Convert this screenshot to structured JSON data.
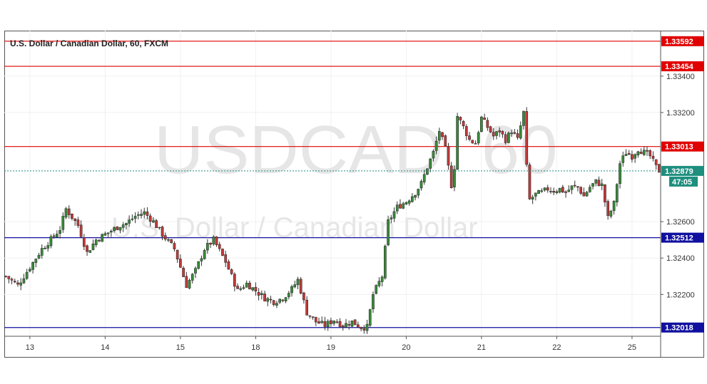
{
  "chart_data": {
    "type": "candlestick",
    "title": "U.S. Dollar / Canadian Dollar, 60, FXCM",
    "watermark_symbol": "USDCAD, 60",
    "watermark_name": "U.S. Dollar / Canadian Dollar",
    "ylim": [
      1.3197,
      1.3365
    ],
    "y_ticks": [
      "1.32200",
      "1.32400",
      "1.32600",
      "1.33200",
      "1.33400"
    ],
    "y_tick_values": [
      1.322,
      1.324,
      1.326,
      1.332,
      1.334
    ],
    "x_ticks": [
      "13",
      "14",
      "15",
      "18",
      "19",
      "20",
      "21",
      "22",
      "25"
    ],
    "x_tick_index": [
      8,
      33,
      58,
      83,
      108,
      133,
      158,
      183,
      208
    ],
    "total_bars": 218,
    "grid": true,
    "current_price": "1.32879",
    "current_price_value": 1.32879,
    "countdown": "47:05",
    "levels": [
      {
        "label": "1.33592",
        "value": 1.33592,
        "color": "#e00000"
      },
      {
        "label": "1.33454",
        "value": 1.33454,
        "color": "#e00000"
      },
      {
        "label": "1.33013",
        "value": 1.33013,
        "color": "#e00000"
      },
      {
        "label": "1.32512",
        "value": 1.32512,
        "color": "#1010a0"
      },
      {
        "label": "1.32018",
        "value": 1.32018,
        "color": "#1010a0"
      }
    ],
    "anchors": [
      [
        0,
        1.323
      ],
      [
        4,
        1.3225
      ],
      [
        8,
        1.3235
      ],
      [
        12,
        1.3245
      ],
      [
        16,
        1.3252
      ],
      [
        18,
        1.3256
      ],
      [
        20,
        1.3267
      ],
      [
        24,
        1.3258
      ],
      [
        27,
        1.3243
      ],
      [
        30,
        1.325
      ],
      [
        34,
        1.3254
      ],
      [
        38,
        1.3258
      ],
      [
        40,
        1.3259
      ],
      [
        43,
        1.3263
      ],
      [
        46,
        1.3265
      ],
      [
        49,
        1.326
      ],
      [
        52,
        1.3253
      ],
      [
        56,
        1.3245
      ],
      [
        60,
        1.3225
      ],
      [
        63,
        1.3233
      ],
      [
        66,
        1.3245
      ],
      [
        69,
        1.325
      ],
      [
        73,
        1.3238
      ],
      [
        77,
        1.3222
      ],
      [
        80,
        1.3226
      ],
      [
        83,
        1.3222
      ],
      [
        86,
        1.3218
      ],
      [
        89,
        1.3216
      ],
      [
        92,
        1.3218
      ],
      [
        95,
        1.3223
      ],
      [
        97,
        1.3228
      ],
      [
        100,
        1.321
      ],
      [
        103,
        1.3205
      ],
      [
        106,
        1.3203
      ],
      [
        109,
        1.3206
      ],
      [
        112,
        1.3203
      ],
      [
        115,
        1.3205
      ],
      [
        118,
        1.3202
      ],
      [
        120,
        1.3202
      ],
      [
        122,
        1.322
      ],
      [
        125,
        1.323
      ],
      [
        127,
        1.326
      ],
      [
        130,
        1.3268
      ],
      [
        133,
        1.3271
      ],
      [
        136,
        1.3276
      ],
      [
        138,
        1.3281
      ],
      [
        140,
        1.329
      ],
      [
        142,
        1.3298
      ],
      [
        144,
        1.331
      ],
      [
        146,
        1.33
      ],
      [
        148,
        1.328
      ],
      [
        149,
        1.329
      ],
      [
        150,
        1.3318
      ],
      [
        152,
        1.3312
      ],
      [
        154,
        1.3305
      ],
      [
        156,
        1.3303
      ],
      [
        158,
        1.3317
      ],
      [
        160,
        1.3312
      ],
      [
        162,
        1.3307
      ],
      [
        164,
        1.331
      ],
      [
        166,
        1.3305
      ],
      [
        168,
        1.331
      ],
      [
        170,
        1.3305
      ],
      [
        172,
        1.332
      ],
      [
        173,
        1.329
      ],
      [
        174,
        1.3272
      ],
      [
        176,
        1.3275
      ],
      [
        178,
        1.3276
      ],
      [
        180,
        1.3278
      ],
      [
        182,
        1.3277
      ],
      [
        184,
        1.3278
      ],
      [
        186,
        1.3276
      ],
      [
        188,
        1.3279
      ],
      [
        190,
        1.3279
      ],
      [
        192,
        1.3274
      ],
      [
        194,
        1.3279
      ],
      [
        196,
        1.3282
      ],
      [
        198,
        1.328
      ],
      [
        200,
        1.3262
      ],
      [
        202,
        1.327
      ],
      [
        204,
        1.3292
      ],
      [
        206,
        1.3298
      ],
      [
        208,
        1.3296
      ],
      [
        210,
        1.33
      ],
      [
        212,
        1.3298
      ],
      [
        214,
        1.3296
      ],
      [
        216,
        1.329
      ],
      [
        217,
        1.3288
      ]
    ]
  }
}
